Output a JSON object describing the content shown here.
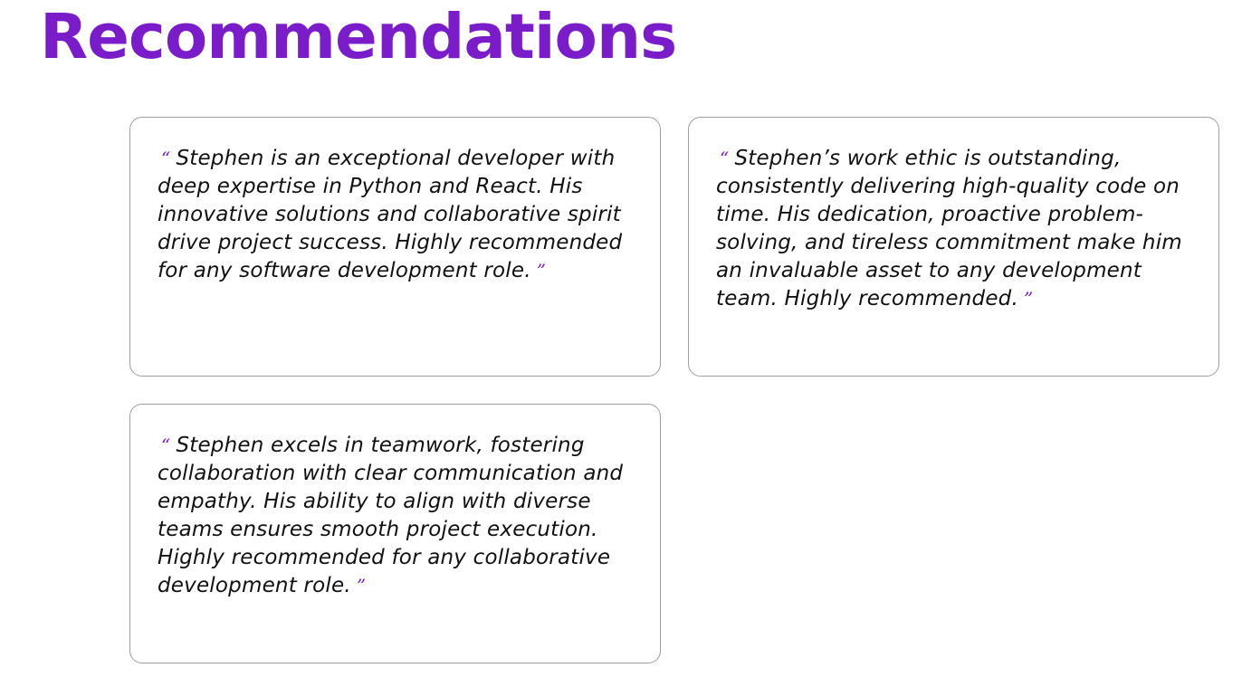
{
  "page": {
    "title": "Recommendations"
  },
  "colors": {
    "accent": "#7a1cc9",
    "text": "#111111",
    "card_border": "#9e9e9e"
  },
  "quote_marks": {
    "open": "“",
    "close": "”"
  },
  "recommendations": [
    {
      "text": "Stephen is an exceptional developer with deep expertise in Python and React. His innovative solutions and collaborative spirit drive project success. Highly recommended for any software development role."
    },
    {
      "text": "Stephen’s work ethic is outstanding, consistently delivering high-quality code on time. His dedication, proactive problem-solving, and tireless commitment make him an invaluable asset to any development team. Highly recommended."
    },
    {
      "text": "Stephen excels in teamwork, fostering collaboration with clear communication and empathy. His ability to align with diverse teams ensures smooth project execution. Highly recommended for any collaborative development role."
    }
  ]
}
